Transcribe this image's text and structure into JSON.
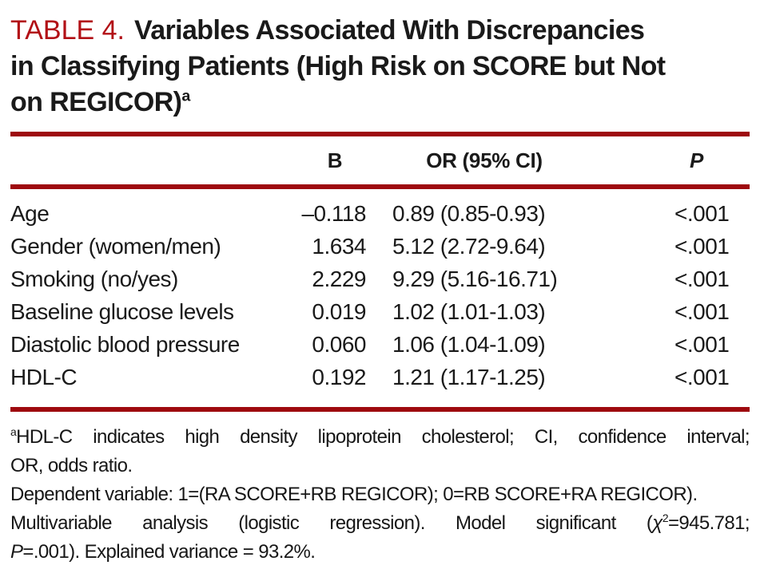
{
  "title": {
    "label": "TABLE 4.",
    "lines": [
      "Variables Associated With Discrepancies",
      "in Classifying Patients (High Risk on SCORE but Not",
      "on REGICOR)"
    ],
    "sup": "a"
  },
  "table": {
    "headers": {
      "variable": "",
      "b": "B",
      "or": "OR (95% CI)",
      "p": "P"
    },
    "rows": [
      {
        "variable": "Age",
        "b": "–0.118",
        "or": "0.89 (0.85-0.93)",
        "p": "<.001"
      },
      {
        "variable": "Gender (women/men)",
        "b": "1.634",
        "or": "5.12 (2.72-9.64)",
        "p": "<.001"
      },
      {
        "variable": "Smoking (no/yes)",
        "b": "2.229",
        "or": "9.29 (5.16-16.71)",
        "p": "<.001"
      },
      {
        "variable": "Baseline glucose levels",
        "b": "0.019",
        "or": "1.02 (1.01-1.03)",
        "p": "<.001"
      },
      {
        "variable": "Diastolic blood pressure",
        "b": "0.060",
        "or": "1.06 (1.04-1.09)",
        "p": "<.001"
      },
      {
        "variable": "HDL-C",
        "b": "0.192",
        "or": "1.21 (1.17-1.25)",
        "p": "<.001"
      }
    ]
  },
  "footnotes": {
    "abbrev": {
      "sup": "a",
      "line1": "HDL-C indicates high density lipoprotein cholesterol; CI, confidence interval;",
      "line2": "OR, odds ratio."
    },
    "dependent": "Dependent variable: 1=(RA SCORE+RB REGICOR); 0=RB SCORE+RA REGICOR).",
    "model": {
      "pre": "Multivariable analysis (logistic regression). Model significant (",
      "chi": "χ",
      "chi_sup": "2",
      "post": "=945.781;",
      "p_italic": "P",
      "end": "=.001). Explained variance = 93.2%."
    }
  },
  "colors": {
    "accent_red": "#b21016",
    "rule_red": "#9e0a0f",
    "text": "#1a1a1a"
  }
}
